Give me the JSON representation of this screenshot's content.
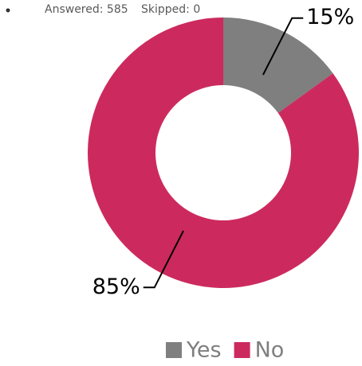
{
  "chart_data": {
    "type": "donut",
    "answered": "Answered: 585",
    "skipped": "Skipped: 0",
    "categories": [
      "Yes",
      "No"
    ],
    "values": [
      15,
      85
    ],
    "value_labels": [
      "15%",
      "85%"
    ],
    "colors": [
      "#7f7f7f",
      "#cc2a5e"
    ],
    "legend": "bottom"
  }
}
